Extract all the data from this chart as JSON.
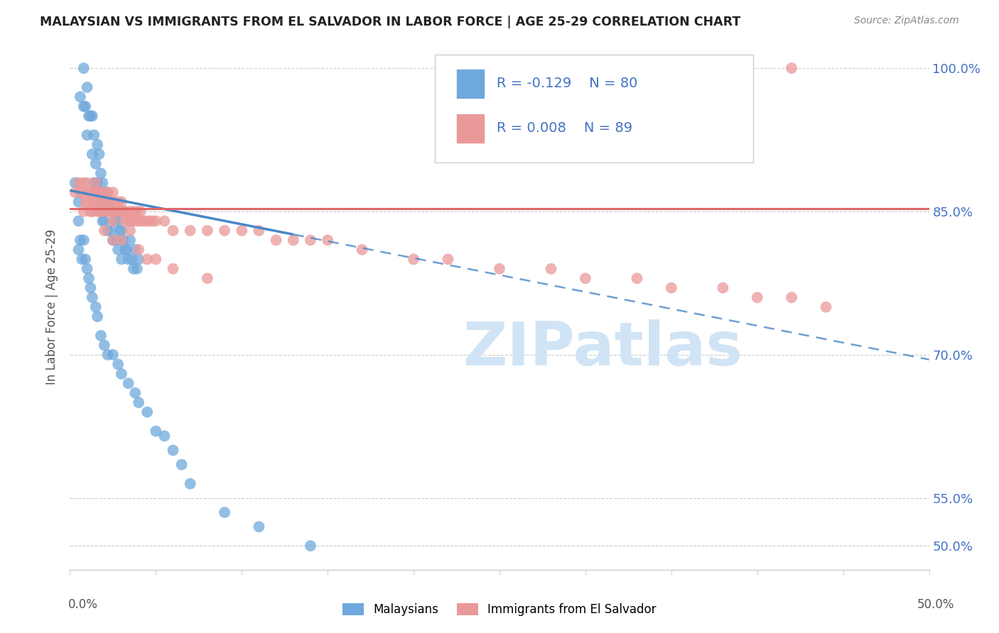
{
  "title": "MALAYSIAN VS IMMIGRANTS FROM EL SALVADOR IN LABOR FORCE | AGE 25-29 CORRELATION CHART",
  "source": "Source: ZipAtlas.com",
  "ylabel": "In Labor Force | Age 25-29",
  "x_range": [
    0.0,
    0.5
  ],
  "y_range": [
    0.475,
    1.025
  ],
  "y_ticks": [
    0.5,
    0.55,
    0.7,
    0.85,
    1.0
  ],
  "y_tick_labels": [
    "50.0%",
    "55.0%",
    "70.0%",
    "85.0%",
    "100.0%"
  ],
  "legend_blue_r": "-0.129",
  "legend_blue_n": "80",
  "legend_pink_r": "0.008",
  "legend_pink_n": "89",
  "legend_blue_label": "Malaysians",
  "legend_pink_label": "Immigrants from El Salvador",
  "blue_color": "#6fa8dc",
  "pink_color": "#ea9999",
  "blue_line_color": "#4a86c8",
  "pink_line_color": "#e06666",
  "watermark_text": "ZIPatlas",
  "blue_line_x0": 0.0,
  "blue_line_y0": 0.872,
  "blue_line_x1": 0.5,
  "blue_line_y1": 0.695,
  "blue_line_solid_end": 0.13,
  "pink_line_y": 0.853,
  "blue_x": [
    0.003,
    0.005,
    0.006,
    0.008,
    0.008,
    0.009,
    0.01,
    0.01,
    0.011,
    0.012,
    0.013,
    0.013,
    0.014,
    0.014,
    0.015,
    0.015,
    0.016,
    0.016,
    0.017,
    0.017,
    0.018,
    0.018,
    0.019,
    0.019,
    0.02,
    0.02,
    0.021,
    0.022,
    0.022,
    0.023,
    0.024,
    0.025,
    0.025,
    0.026,
    0.027,
    0.028,
    0.028,
    0.029,
    0.03,
    0.03,
    0.031,
    0.032,
    0.033,
    0.034,
    0.035,
    0.036,
    0.037,
    0.038,
    0.039,
    0.04,
    0.005,
    0.005,
    0.006,
    0.007,
    0.008,
    0.009,
    0.01,
    0.011,
    0.012,
    0.013,
    0.015,
    0.016,
    0.018,
    0.02,
    0.022,
    0.025,
    0.028,
    0.03,
    0.034,
    0.038,
    0.04,
    0.045,
    0.05,
    0.055,
    0.06,
    0.065,
    0.07,
    0.09,
    0.11,
    0.14
  ],
  "blue_y": [
    0.88,
    0.86,
    0.97,
    1.0,
    0.96,
    0.96,
    0.98,
    0.93,
    0.95,
    0.95,
    0.95,
    0.91,
    0.93,
    0.88,
    0.9,
    0.87,
    0.92,
    0.88,
    0.91,
    0.86,
    0.89,
    0.85,
    0.88,
    0.84,
    0.87,
    0.84,
    0.86,
    0.87,
    0.83,
    0.86,
    0.83,
    0.85,
    0.82,
    0.84,
    0.82,
    0.84,
    0.81,
    0.83,
    0.83,
    0.8,
    0.82,
    0.81,
    0.81,
    0.8,
    0.82,
    0.8,
    0.79,
    0.81,
    0.79,
    0.8,
    0.84,
    0.81,
    0.82,
    0.8,
    0.82,
    0.8,
    0.79,
    0.78,
    0.77,
    0.76,
    0.75,
    0.74,
    0.72,
    0.71,
    0.7,
    0.7,
    0.69,
    0.68,
    0.67,
    0.66,
    0.65,
    0.64,
    0.62,
    0.615,
    0.6,
    0.585,
    0.565,
    0.535,
    0.52,
    0.5
  ],
  "pink_x": [
    0.003,
    0.005,
    0.006,
    0.007,
    0.008,
    0.008,
    0.009,
    0.01,
    0.01,
    0.011,
    0.012,
    0.012,
    0.013,
    0.013,
    0.014,
    0.015,
    0.015,
    0.016,
    0.016,
    0.017,
    0.018,
    0.018,
    0.019,
    0.02,
    0.02,
    0.021,
    0.022,
    0.022,
    0.023,
    0.024,
    0.025,
    0.025,
    0.026,
    0.027,
    0.028,
    0.029,
    0.03,
    0.03,
    0.031,
    0.032,
    0.033,
    0.034,
    0.035,
    0.036,
    0.037,
    0.038,
    0.039,
    0.04,
    0.041,
    0.042,
    0.044,
    0.046,
    0.048,
    0.05,
    0.055,
    0.06,
    0.07,
    0.08,
    0.09,
    0.1,
    0.11,
    0.12,
    0.13,
    0.14,
    0.15,
    0.17,
    0.2,
    0.22,
    0.25,
    0.28,
    0.3,
    0.33,
    0.35,
    0.38,
    0.4,
    0.42,
    0.44,
    0.045,
    0.025,
    0.015,
    0.02,
    0.025,
    0.03,
    0.035,
    0.04,
    0.05,
    0.06,
    0.08,
    0.42
  ],
  "pink_y": [
    0.87,
    0.88,
    0.87,
    0.87,
    0.88,
    0.85,
    0.86,
    0.88,
    0.86,
    0.87,
    0.87,
    0.85,
    0.86,
    0.85,
    0.87,
    0.88,
    0.86,
    0.87,
    0.85,
    0.86,
    0.87,
    0.85,
    0.86,
    0.87,
    0.85,
    0.86,
    0.87,
    0.85,
    0.86,
    0.85,
    0.87,
    0.85,
    0.86,
    0.85,
    0.86,
    0.85,
    0.86,
    0.85,
    0.85,
    0.84,
    0.85,
    0.84,
    0.85,
    0.84,
    0.85,
    0.84,
    0.85,
    0.84,
    0.85,
    0.84,
    0.84,
    0.84,
    0.84,
    0.84,
    0.84,
    0.83,
    0.83,
    0.83,
    0.83,
    0.83,
    0.83,
    0.82,
    0.82,
    0.82,
    0.82,
    0.81,
    0.8,
    0.8,
    0.79,
    0.79,
    0.78,
    0.78,
    0.77,
    0.77,
    0.76,
    0.76,
    0.75,
    0.8,
    0.82,
    0.87,
    0.83,
    0.84,
    0.82,
    0.83,
    0.81,
    0.8,
    0.79,
    0.78,
    1.0
  ]
}
